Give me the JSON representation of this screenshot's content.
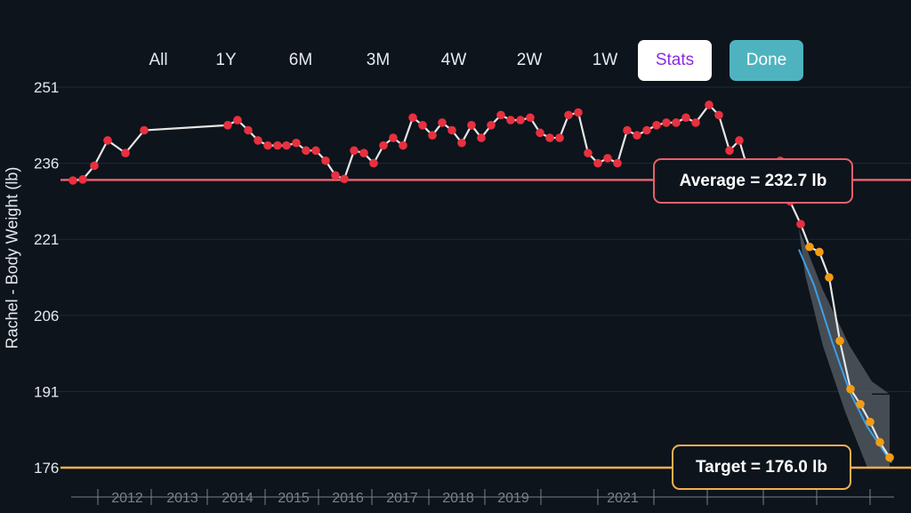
{
  "range_bar": {
    "options": [
      "All",
      "1Y",
      "6M",
      "3M",
      "4W",
      "2W",
      "1W"
    ],
    "stats_label": "Stats",
    "done_label": "Done"
  },
  "annotations": {
    "average_label": "Average = 232.7 lb",
    "target_label": "Target = 176.0 lb"
  },
  "chart_data": {
    "type": "line",
    "ylabel": "Rachel - Body Weight (lb)",
    "ylim": [
      173,
      254
    ],
    "y_ticks": [
      251,
      236,
      221,
      206,
      191,
      176
    ],
    "grid": true,
    "x_axis_labels": [
      "2012",
      "2013",
      "2014",
      "2015",
      "2016",
      "2017",
      "2018",
      "2019",
      "2021"
    ],
    "average": 232.7,
    "target": 176.0,
    "series": [
      {
        "values": [
          232.6,
          232.8,
          235.5,
          240.5,
          238,
          242.5,
          243.5,
          244.5,
          242.5,
          240.5,
          239.5,
          239.5,
          239.5,
          240,
          238.5,
          238.5,
          236.5,
          233.6,
          232.9,
          238.5,
          238,
          236,
          239.5,
          241,
          239.5,
          245,
          243.5,
          241.5,
          244,
          242.5,
          240,
          243.5,
          241,
          243.5,
          245.5,
          244.5,
          244.5,
          245,
          242,
          241,
          241,
          245.5,
          246,
          238,
          236,
          237,
          236,
          242.5,
          241.5,
          242.5,
          243.5,
          244,
          244,
          245,
          244,
          247.5,
          245.5,
          238.5,
          240.5,
          234,
          234,
          234,
          236.5,
          228.5,
          224
        ],
        "color": "#e8303f"
      },
      {
        "values": [
          219.5,
          218.5,
          213.5,
          201,
          191.5,
          188.5,
          185,
          181,
          178
        ],
        "color": "#f39c12"
      }
    ]
  },
  "colors": {
    "background": "#0d141c",
    "average_line": "#e8606c",
    "target_line": "#f4b04f",
    "history_point": "#e8303f",
    "projection_point": "#f39c12",
    "trend_line": "#3aa0e8",
    "stats_text": "#8a2be2",
    "done_bg": "#4fb3bf"
  }
}
